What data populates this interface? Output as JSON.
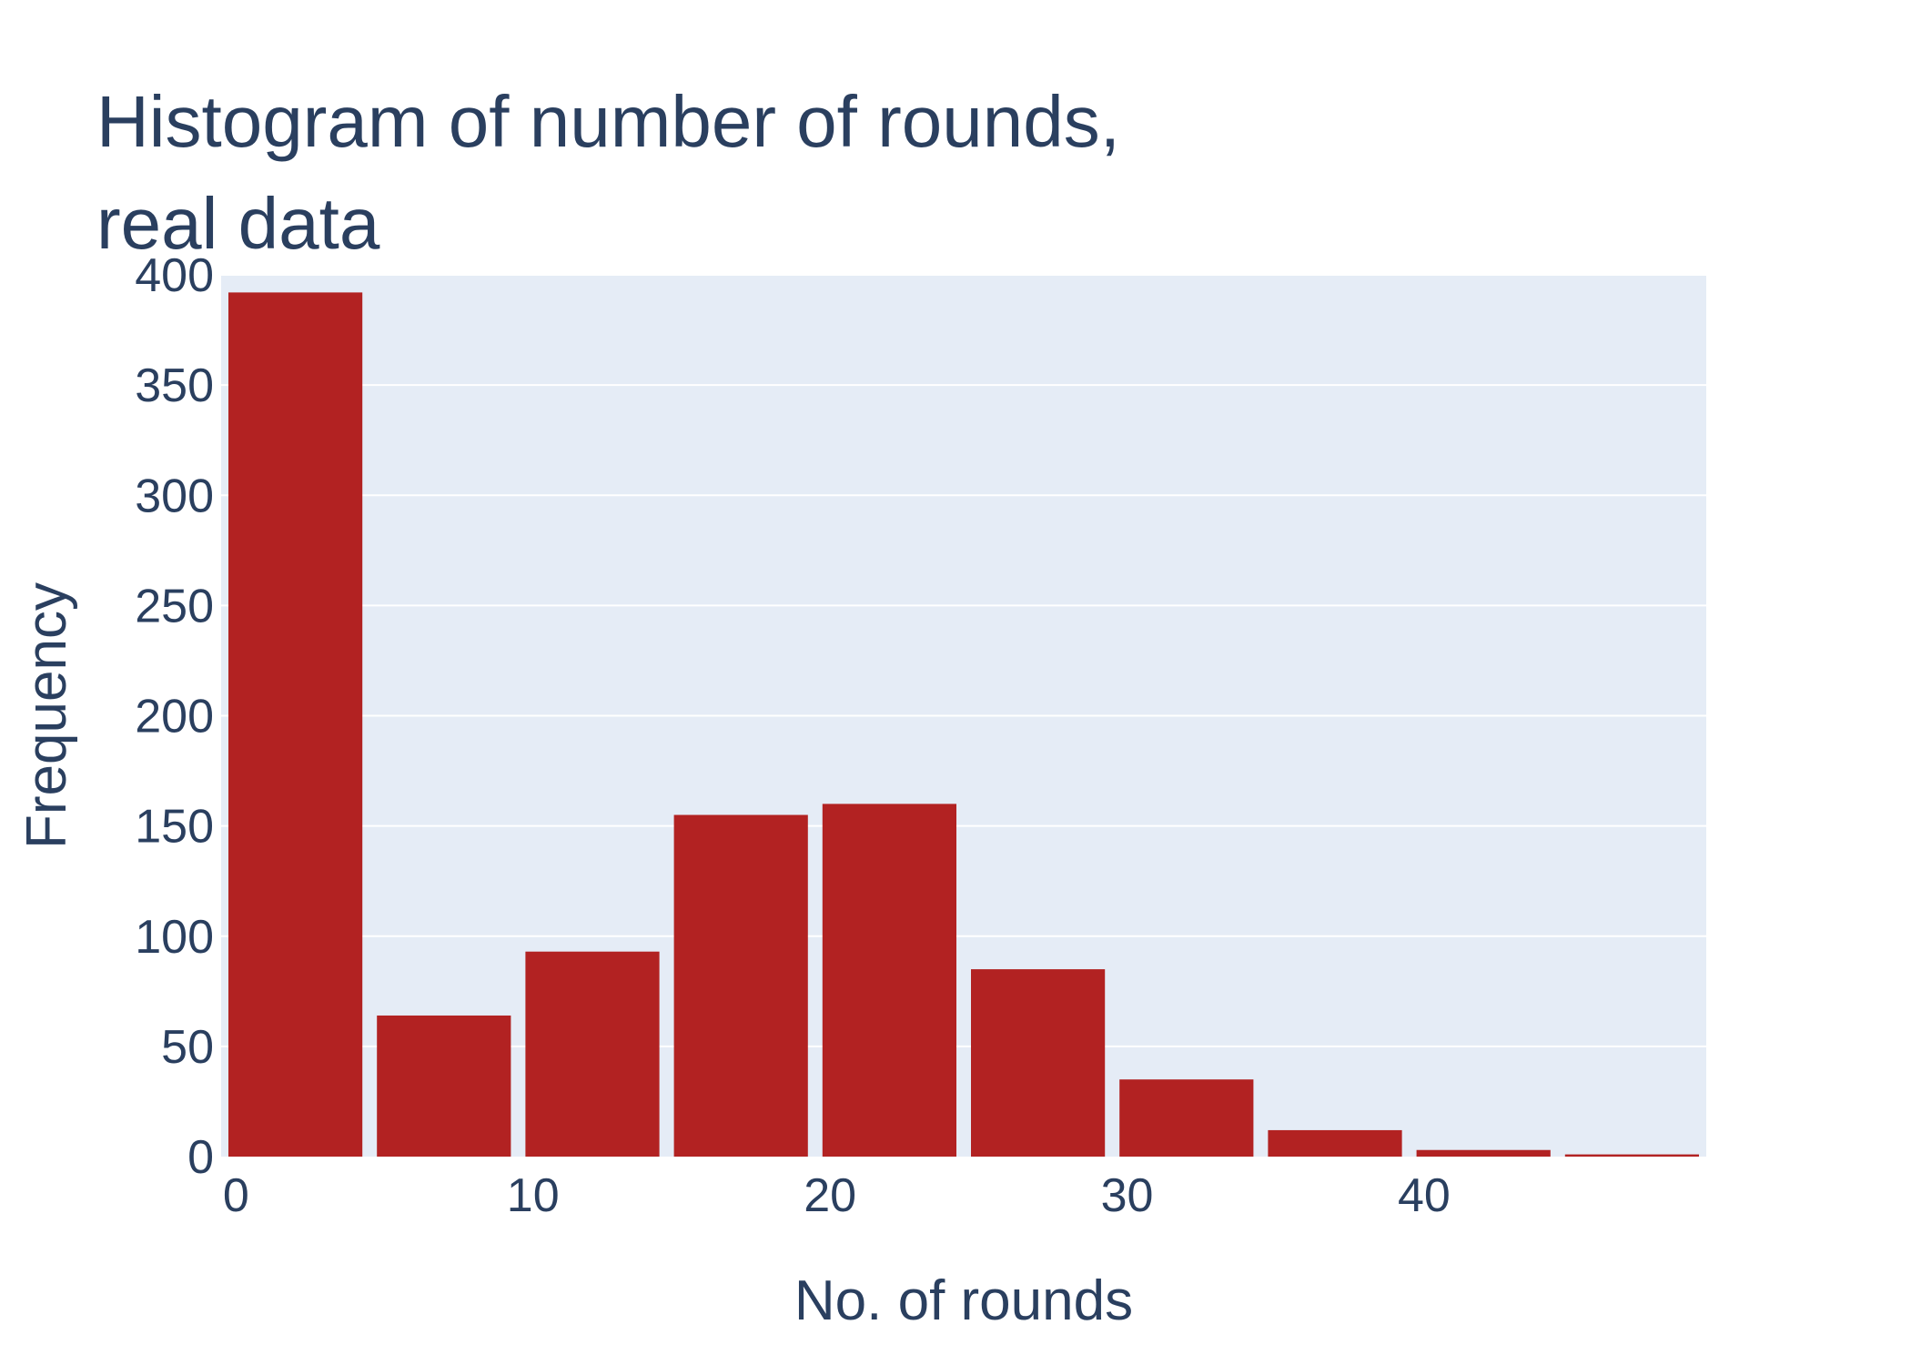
{
  "chart_data": {
    "type": "bar",
    "title_lines": [
      "Histogram of number of rounds,",
      "real data"
    ],
    "xlabel": "No. of rounds",
    "ylabel": "Frequency",
    "x_bin_starts": [
      0,
      5,
      10,
      15,
      20,
      25,
      30,
      35,
      40,
      45
    ],
    "bin_width": 5,
    "values": [
      392,
      64,
      93,
      155,
      160,
      85,
      35,
      12,
      3,
      1
    ],
    "xlim": [
      -0.5,
      49.5
    ],
    "ylim": [
      0,
      400
    ],
    "x_ticks": [
      0,
      10,
      20,
      30,
      40
    ],
    "y_ticks": [
      0,
      50,
      100,
      150,
      200,
      250,
      300,
      350,
      400
    ],
    "grid": true,
    "colors": {
      "bar": "#b22222",
      "plot_background": "#e5ecf6",
      "grid": "#ffffff",
      "text": "#2a3f5f"
    }
  }
}
